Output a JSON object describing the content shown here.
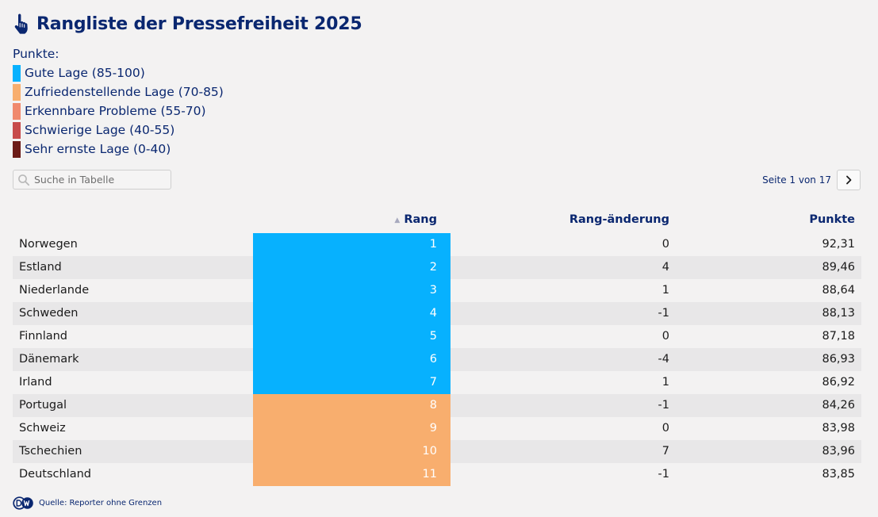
{
  "header": {
    "title": "Rangliste der Pressefreiheit 2025",
    "icon": "hand-pointer-icon"
  },
  "legend": {
    "title": "Punkte:",
    "items": [
      {
        "label": "Gute Lage (85-100)",
        "color": "#07b1fe"
      },
      {
        "label": "Zufriedenstellende Lage (70-85)",
        "color": "#f8ae6e"
      },
      {
        "label": "Erkennbare Probleme (55-70)",
        "color": "#f0896d"
      },
      {
        "label": "Schwierige Lage (40-55)",
        "color": "#c74b4b"
      },
      {
        "label": "Sehr ernste Lage (0-40)",
        "color": "#6c1b17"
      }
    ]
  },
  "search": {
    "placeholder": "Suche in Tabelle",
    "value": ""
  },
  "pager": {
    "text": "Seite 1 von 17"
  },
  "chart_data": {
    "type": "table",
    "columns": [
      "",
      "Rang",
      "Rang-änderung",
      "Punkte"
    ],
    "sort": {
      "column": "Rang",
      "direction": "ascending"
    },
    "rows": [
      {
        "country": "Norwegen",
        "rank": "1",
        "change": "0",
        "points": "92,31",
        "color": "#07b1fe"
      },
      {
        "country": "Estland",
        "rank": "2",
        "change": "4",
        "points": "89,46",
        "color": "#07b1fe"
      },
      {
        "country": "Niederlande",
        "rank": "3",
        "change": "1",
        "points": "88,64",
        "color": "#07b1fe"
      },
      {
        "country": "Schweden",
        "rank": "4",
        "change": "-1",
        "points": "88,13",
        "color": "#07b1fe"
      },
      {
        "country": "Finnland",
        "rank": "5",
        "change": "0",
        "points": "87,18",
        "color": "#07b1fe"
      },
      {
        "country": "Dänemark",
        "rank": "6",
        "change": "-4",
        "points": "86,93",
        "color": "#07b1fe"
      },
      {
        "country": "Irland",
        "rank": "7",
        "change": "1",
        "points": "86,92",
        "color": "#07b1fe"
      },
      {
        "country": "Portugal",
        "rank": "8",
        "change": "-1",
        "points": "84,26",
        "color": "#f8ae6e"
      },
      {
        "country": "Schweiz",
        "rank": "9",
        "change": "0",
        "points": "83,98",
        "color": "#f8ae6e"
      },
      {
        "country": "Tschechien",
        "rank": "10",
        "change": "7",
        "points": "83,96",
        "color": "#f8ae6e"
      },
      {
        "country": "Deutschland",
        "rank": "11",
        "change": "-1",
        "points": "83,85",
        "color": "#f8ae6e"
      }
    ]
  },
  "footer": {
    "label": "Quelle:",
    "source": "Reporter ohne Grenzen",
    "logo": "DW"
  }
}
